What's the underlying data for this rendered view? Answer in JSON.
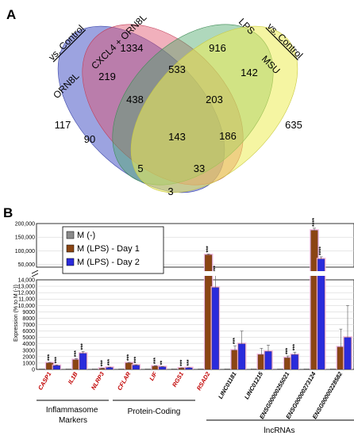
{
  "panel_a": {
    "letter": "A",
    "vs_left": "vs. Control",
    "vs_right": "vs. Control",
    "sets": [
      {
        "name": "ORN8L",
        "color": "#4a57c6"
      },
      {
        "name": "CXCL4 + ORN8L",
        "color": "#e0506a"
      },
      {
        "name": "LPS",
        "color": "#4ea86a"
      },
      {
        "name": "MSU",
        "color": "#eded55"
      }
    ],
    "regions": {
      "orn_only": "117",
      "cxcl_only": "1334",
      "lps_only": "916",
      "msu_only": "635",
      "orn_cxcl": "219",
      "cxcl_lps": "533",
      "lps_msu": "142",
      "orn_lps": "90",
      "cxcl_msu": "186",
      "orn_cxcl_lps": "438",
      "cxcl_lps_msu": "203",
      "all": "143",
      "orn_lps_msu": "5",
      "orn_cxcl_msu": "33",
      "orn_msu": "3"
    }
  },
  "panel_b": {
    "letter": "B",
    "chart_data": {
      "type": "bar",
      "ylabel": "Expression (% to M (-))",
      "y_ticks_lower": [
        "0",
        "1000",
        "2000",
        "3000",
        "4000",
        "5000",
        "6000",
        "7000",
        "8000",
        "9000",
        "10,000",
        "11,000",
        "12,000",
        "13,000",
        "14,000"
      ],
      "y_ticks_upper": [
        "50,000",
        "100,000",
        "150,000",
        "200,000"
      ],
      "categories": [
        "CASP1",
        "IL1B",
        "NLRP3",
        "CFLAR",
        "LIF",
        "RGS1",
        "RSAD2",
        "LINC01181",
        "LINC01215",
        "ENSG00000255021",
        "ENSG00000273124",
        "ENSG00000228582"
      ],
      "category_colors": [
        "#c00000",
        "#c00000",
        "#c00000",
        "#c00000",
        "#c00000",
        "#c00000",
        "#c00000",
        "#000000",
        "#000000",
        "#000000",
        "#000000",
        "#000000"
      ],
      "series": [
        {
          "name": "M (-)",
          "color": "#8a8a8a",
          "values": [
            100,
            100,
            100,
            100,
            100,
            100,
            100,
            100,
            100,
            100,
            100,
            100
          ],
          "errors": [
            0,
            0,
            0,
            0,
            0,
            0,
            0,
            0,
            0,
            0,
            0,
            0
          ],
          "stars": [
            "",
            "",
            "",
            "",
            "",
            "",
            "",
            "",
            "",
            "",
            "",
            ""
          ]
        },
        {
          "name": "M (LPS) - Day 1",
          "color": "#8b4513",
          "values": [
            1000,
            1500,
            150,
            1000,
            500,
            200,
            85000,
            3000,
            2300,
            1800,
            175000,
            3500
          ],
          "errors": [
            100,
            200,
            50,
            100,
            100,
            50,
            3000,
            700,
            1000,
            300,
            8000,
            2800
          ],
          "stars": [
            "***",
            "***",
            "***",
            "***",
            "***",
            "***",
            "***",
            "***",
            "",
            "***",
            "****",
            ""
          ]
        },
        {
          "name": "M (LPS) - Day 2",
          "color": "#2b2bdc",
          "values": [
            600,
            2500,
            300,
            650,
            400,
            250,
            12800,
            4000,
            2800,
            2300,
            70000,
            5000
          ],
          "errors": [
            100,
            300,
            50,
            80,
            50,
            40,
            3000,
            2000,
            1000,
            400,
            8000,
            5000
          ],
          "stars": [
            "***",
            "***",
            "***",
            "***",
            "**",
            "***",
            "***",
            "",
            "",
            "***",
            "****",
            ""
          ]
        }
      ],
      "legend_position": "top-left"
    },
    "groups": [
      {
        "label": "Inflammasome Markers"
      },
      {
        "label": "Protein-Coding"
      },
      {
        "label": "lncRNAs"
      }
    ]
  }
}
